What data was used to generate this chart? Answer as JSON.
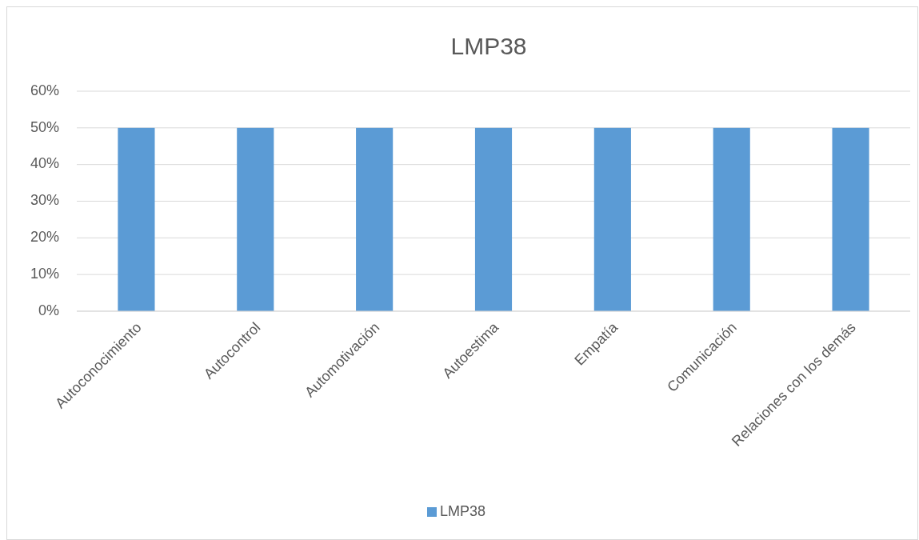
{
  "chart_data": {
    "type": "bar",
    "title": "LMP38",
    "categories": [
      "Autoconocimiento",
      "Autocontrol",
      "Automotivación",
      "Autoestima",
      "Empatía",
      "Comunicación",
      "Relaciones con los demás"
    ],
    "series": [
      {
        "name": "LMP38",
        "color": "#5b9bd5",
        "values": [
          50,
          50,
          50,
          50,
          50,
          50,
          50
        ]
      }
    ],
    "ylim": [
      0,
      60
    ],
    "yticks": [
      {
        "value": 0,
        "label": "0%"
      },
      {
        "value": 10,
        "label": "10%"
      },
      {
        "value": 20,
        "label": "20%"
      },
      {
        "value": 30,
        "label": "30%"
      },
      {
        "value": 40,
        "label": "40%"
      },
      {
        "value": 50,
        "label": "50%"
      },
      {
        "value": 60,
        "label": "60%"
      }
    ],
    "grid": "y",
    "legend": "bottom"
  }
}
